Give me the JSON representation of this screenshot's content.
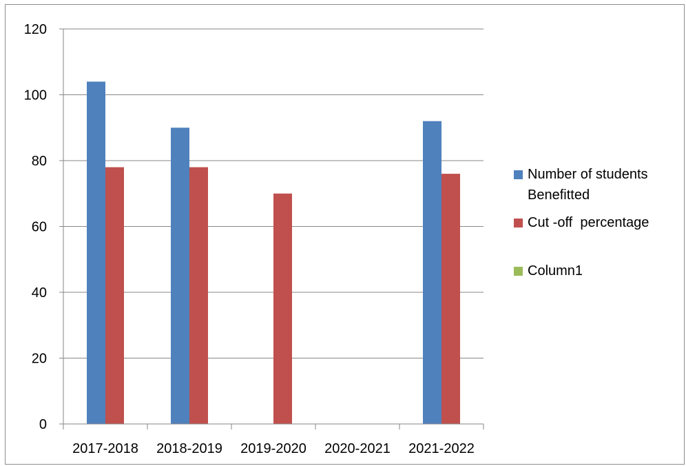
{
  "chart_data": {
    "type": "bar",
    "categories": [
      "2017-2018",
      "2018-2019",
      "2019-2020",
      "2020-2021",
      "2021-2022"
    ],
    "series": [
      {
        "name": "Number of students Benefitted",
        "values": [
          104,
          90,
          null,
          null,
          92
        ],
        "color": "#4f81bd"
      },
      {
        "name": "Cut -off  percentage",
        "values": [
          78,
          78,
          70,
          null,
          76
        ],
        "color": "#c0504d"
      },
      {
        "name": "Column1",
        "values": [
          null,
          null,
          null,
          null,
          null
        ],
        "color": "#9bbb59"
      }
    ],
    "ylim": [
      0,
      120
    ],
    "yticks": [
      0,
      20,
      40,
      60,
      80,
      100,
      120
    ],
    "grid": true,
    "legend_position": "right"
  }
}
